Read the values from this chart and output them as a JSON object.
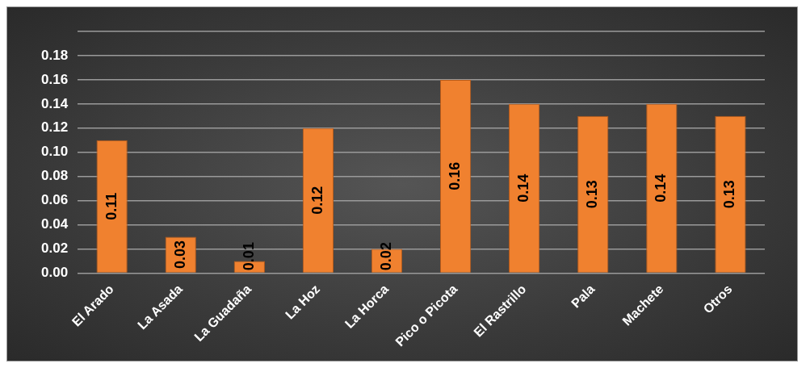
{
  "chart_data": {
    "type": "bar",
    "categories": [
      "El Arado",
      "La Asada",
      "La Guadaña",
      "La Hoz",
      "La Horca",
      "Pico o Picota",
      "El Rastrillo",
      "Pala",
      "Machete",
      "Otros"
    ],
    "values": [
      0.11,
      0.03,
      0.01,
      0.12,
      0.02,
      0.16,
      0.14,
      0.13,
      0.14,
      0.13
    ],
    "color": "#f0812f",
    "ylim": [
      0,
      0.2
    ],
    "yticks": [
      {
        "value": 0,
        "label": "0.00"
      },
      {
        "value": 0.02,
        "label": "0.02"
      },
      {
        "value": 0.04,
        "label": "0.04"
      },
      {
        "value": 0.06,
        "label": "0.06"
      },
      {
        "value": 0.08,
        "label": "0.08"
      },
      {
        "value": 0.1,
        "label": "0.10"
      },
      {
        "value": 0.12,
        "label": "0.12"
      },
      {
        "value": 0.14,
        "label": "0.14"
      },
      {
        "value": 0.16,
        "label": "0.16"
      },
      {
        "value": 0.18,
        "label": "0.18"
      },
      {
        "value": 0.2,
        "label": null
      }
    ],
    "grid": "y",
    "data_labels": true
  }
}
